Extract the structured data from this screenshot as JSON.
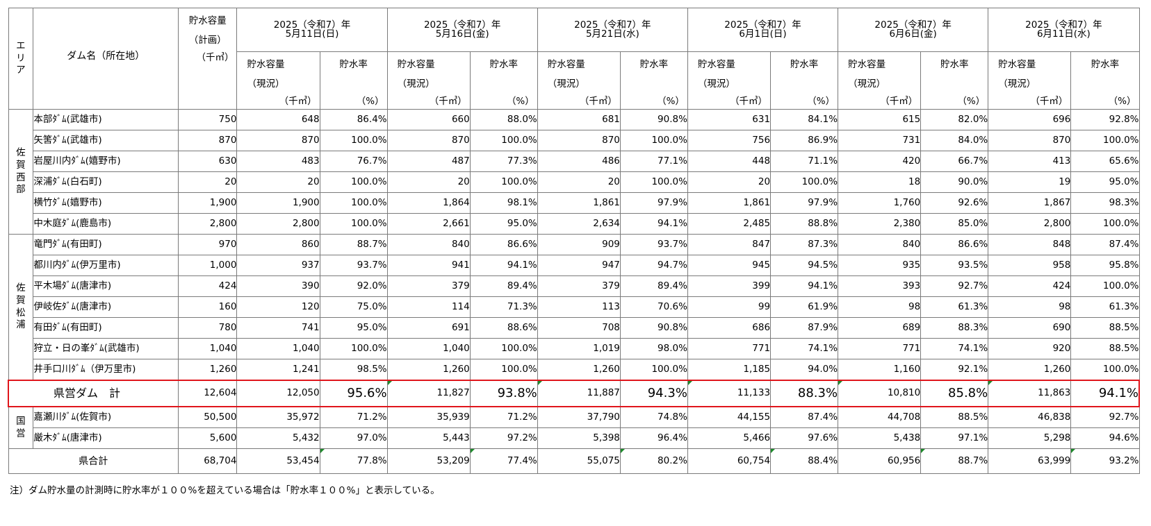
{
  "table": {
    "header": {
      "area": "エリア",
      "dam_name": "ダム名（所在地）",
      "plan_capacity": {
        "line1": "貯水容量",
        "line2": "（計画）",
        "unit": "（千㎥）"
      },
      "current_capacity": {
        "line1": "貯水容量",
        "line2": "（現況）",
        "unit": "（千㎥）"
      },
      "rate": {
        "line1": "貯水率",
        "unit": "（%）"
      },
      "dates": [
        {
          "year": "2025（令和7）年",
          "day": "5月11日(日)"
        },
        {
          "year": "2025（令和7）年",
          "day": "5月16日(金)"
        },
        {
          "year": "2025（令和7）年",
          "day": "5月21日(水)"
        },
        {
          "year": "2025（令和7）年",
          "day": "6月1日(日)"
        },
        {
          "year": "2025（令和7）年",
          "day": "6月6日(金)"
        },
        {
          "year": "2025（令和7）年",
          "day": "6月11日(水)"
        }
      ]
    },
    "areas": [
      {
        "name": "佐賀西部",
        "rows": [
          {
            "name": "本部ﾀﾞﾑ(武雄市)",
            "plan": "750",
            "vals": [
              "648",
              "86.4%",
              "660",
              "88.0%",
              "681",
              "90.8%",
              "631",
              "84.1%",
              "615",
              "82.0%",
              "696",
              "92.8%"
            ]
          },
          {
            "name": "矢筈ﾀﾞﾑ(武雄市)",
            "plan": "870",
            "vals": [
              "870",
              "100.0%",
              "870",
              "100.0%",
              "870",
              "100.0%",
              "756",
              "86.9%",
              "731",
              "84.0%",
              "870",
              "100.0%"
            ]
          },
          {
            "name": "岩屋川内ﾀﾞﾑ(嬉野市)",
            "plan": "630",
            "vals": [
              "483",
              "76.7%",
              "487",
              "77.3%",
              "486",
              "77.1%",
              "448",
              "71.1%",
              "420",
              "66.7%",
              "413",
              "65.6%"
            ]
          },
          {
            "name": "深浦ﾀﾞﾑ(白石町)",
            "plan": "20",
            "vals": [
              "20",
              "100.0%",
              "20",
              "100.0%",
              "20",
              "100.0%",
              "20",
              "100.0%",
              "18",
              "90.0%",
              "19",
              "95.0%"
            ]
          },
          {
            "name": "横竹ﾀﾞﾑ(嬉野市)",
            "plan": "1,900",
            "vals": [
              "1,900",
              "100.0%",
              "1,864",
              "98.1%",
              "1,861",
              "97.9%",
              "1,861",
              "97.9%",
              "1,760",
              "92.6%",
              "1,867",
              "98.3%"
            ]
          },
          {
            "name": "中木庭ﾀﾞﾑ(鹿島市)",
            "plan": "2,800",
            "vals": [
              "2,800",
              "100.0%",
              "2,661",
              "95.0%",
              "2,634",
              "94.1%",
              "2,485",
              "88.8%",
              "2,380",
              "85.0%",
              "2,800",
              "100.0%"
            ]
          }
        ]
      },
      {
        "name": "佐賀松浦",
        "rows": [
          {
            "name": "竜門ﾀﾞﾑ(有田町)",
            "plan": "970",
            "vals": [
              "860",
              "88.7%",
              "840",
              "86.6%",
              "909",
              "93.7%",
              "847",
              "87.3%",
              "840",
              "86.6%",
              "848",
              "87.4%"
            ]
          },
          {
            "name": "都川内ﾀﾞﾑ(伊万里市)",
            "plan": "1,000",
            "vals": [
              "937",
              "93.7%",
              "941",
              "94.1%",
              "947",
              "94.7%",
              "945",
              "94.5%",
              "935",
              "93.5%",
              "958",
              "95.8%"
            ]
          },
          {
            "name": "平木場ﾀﾞﾑ(唐津市)",
            "plan": "424",
            "vals": [
              "390",
              "92.0%",
              "379",
              "89.4%",
              "379",
              "89.4%",
              "399",
              "94.1%",
              "393",
              "92.7%",
              "424",
              "100.0%"
            ]
          },
          {
            "name": "伊岐佐ﾀﾞﾑ(唐津市)",
            "plan": "160",
            "vals": [
              "120",
              "75.0%",
              "114",
              "71.3%",
              "113",
              "70.6%",
              "99",
              "61.9%",
              "98",
              "61.3%",
              "98",
              "61.3%"
            ]
          },
          {
            "name": "有田ﾀﾞﾑ(有田町)",
            "plan": "780",
            "vals": [
              "741",
              "95.0%",
              "691",
              "88.6%",
              "708",
              "90.8%",
              "686",
              "87.9%",
              "689",
              "88.3%",
              "690",
              "88.5%"
            ]
          },
          {
            "name": "狩立・日の峯ﾀﾞﾑ(武雄市)",
            "plan": "1,040",
            "vals": [
              "1,040",
              "100.0%",
              "1,040",
              "100.0%",
              "1,019",
              "98.0%",
              "771",
              "74.1%",
              "771",
              "74.1%",
              "920",
              "88.5%"
            ]
          },
          {
            "name": "井手口川ﾀﾞﾑ（伊万里市)",
            "plan": "1,260",
            "vals": [
              "1,241",
              "98.5%",
              "1,260",
              "100.0%",
              "1,260",
              "100.0%",
              "1,185",
              "94.0%",
              "1,160",
              "92.1%",
              "1,260",
              "100.0%"
            ]
          }
        ]
      }
    ],
    "prefectural_total": {
      "label": "県営ダム　計",
      "plan": "12,604",
      "vals": [
        "12,050",
        "95.6%",
        "11,827",
        "93.8%",
        "11,887",
        "94.3%",
        "11,133",
        "88.3%",
        "10,810",
        "85.8%",
        "11,863",
        "94.1%"
      ]
    },
    "national": {
      "name": "国営",
      "rows": [
        {
          "name": "嘉瀬川ﾀﾞﾑ(佐賀市)",
          "plan": "50,500",
          "vals": [
            "35,972",
            "71.2%",
            "35,939",
            "71.2%",
            "37,790",
            "74.8%",
            "44,155",
            "87.4%",
            "44,708",
            "88.5%",
            "46,838",
            "92.7%"
          ]
        },
        {
          "name": "厳木ﾀﾞﾑ(唐津市)",
          "plan": "5,600",
          "vals": [
            "5,432",
            "97.0%",
            "5,443",
            "97.2%",
            "5,398",
            "96.4%",
            "5,466",
            "97.6%",
            "5,438",
            "97.1%",
            "5,298",
            "94.6%"
          ]
        }
      ]
    },
    "grand_total": {
      "label": "県合計",
      "plan": "68,704",
      "vals": [
        "53,454",
        "77.8%",
        "53,209",
        "77.4%",
        "55,075",
        "80.2%",
        "60,754",
        "88.4%",
        "60,956",
        "88.7%",
        "63,999",
        "93.2%"
      ]
    }
  },
  "footnote": "注）ダム貯水量の計測時に貯水率が１００%を超えている場合は「貯水率１００%」と表示している。",
  "colors": {
    "highlight_border": "#e0151b",
    "cell_marker": "#1e8a2c",
    "grid": "#7a7a7a"
  }
}
